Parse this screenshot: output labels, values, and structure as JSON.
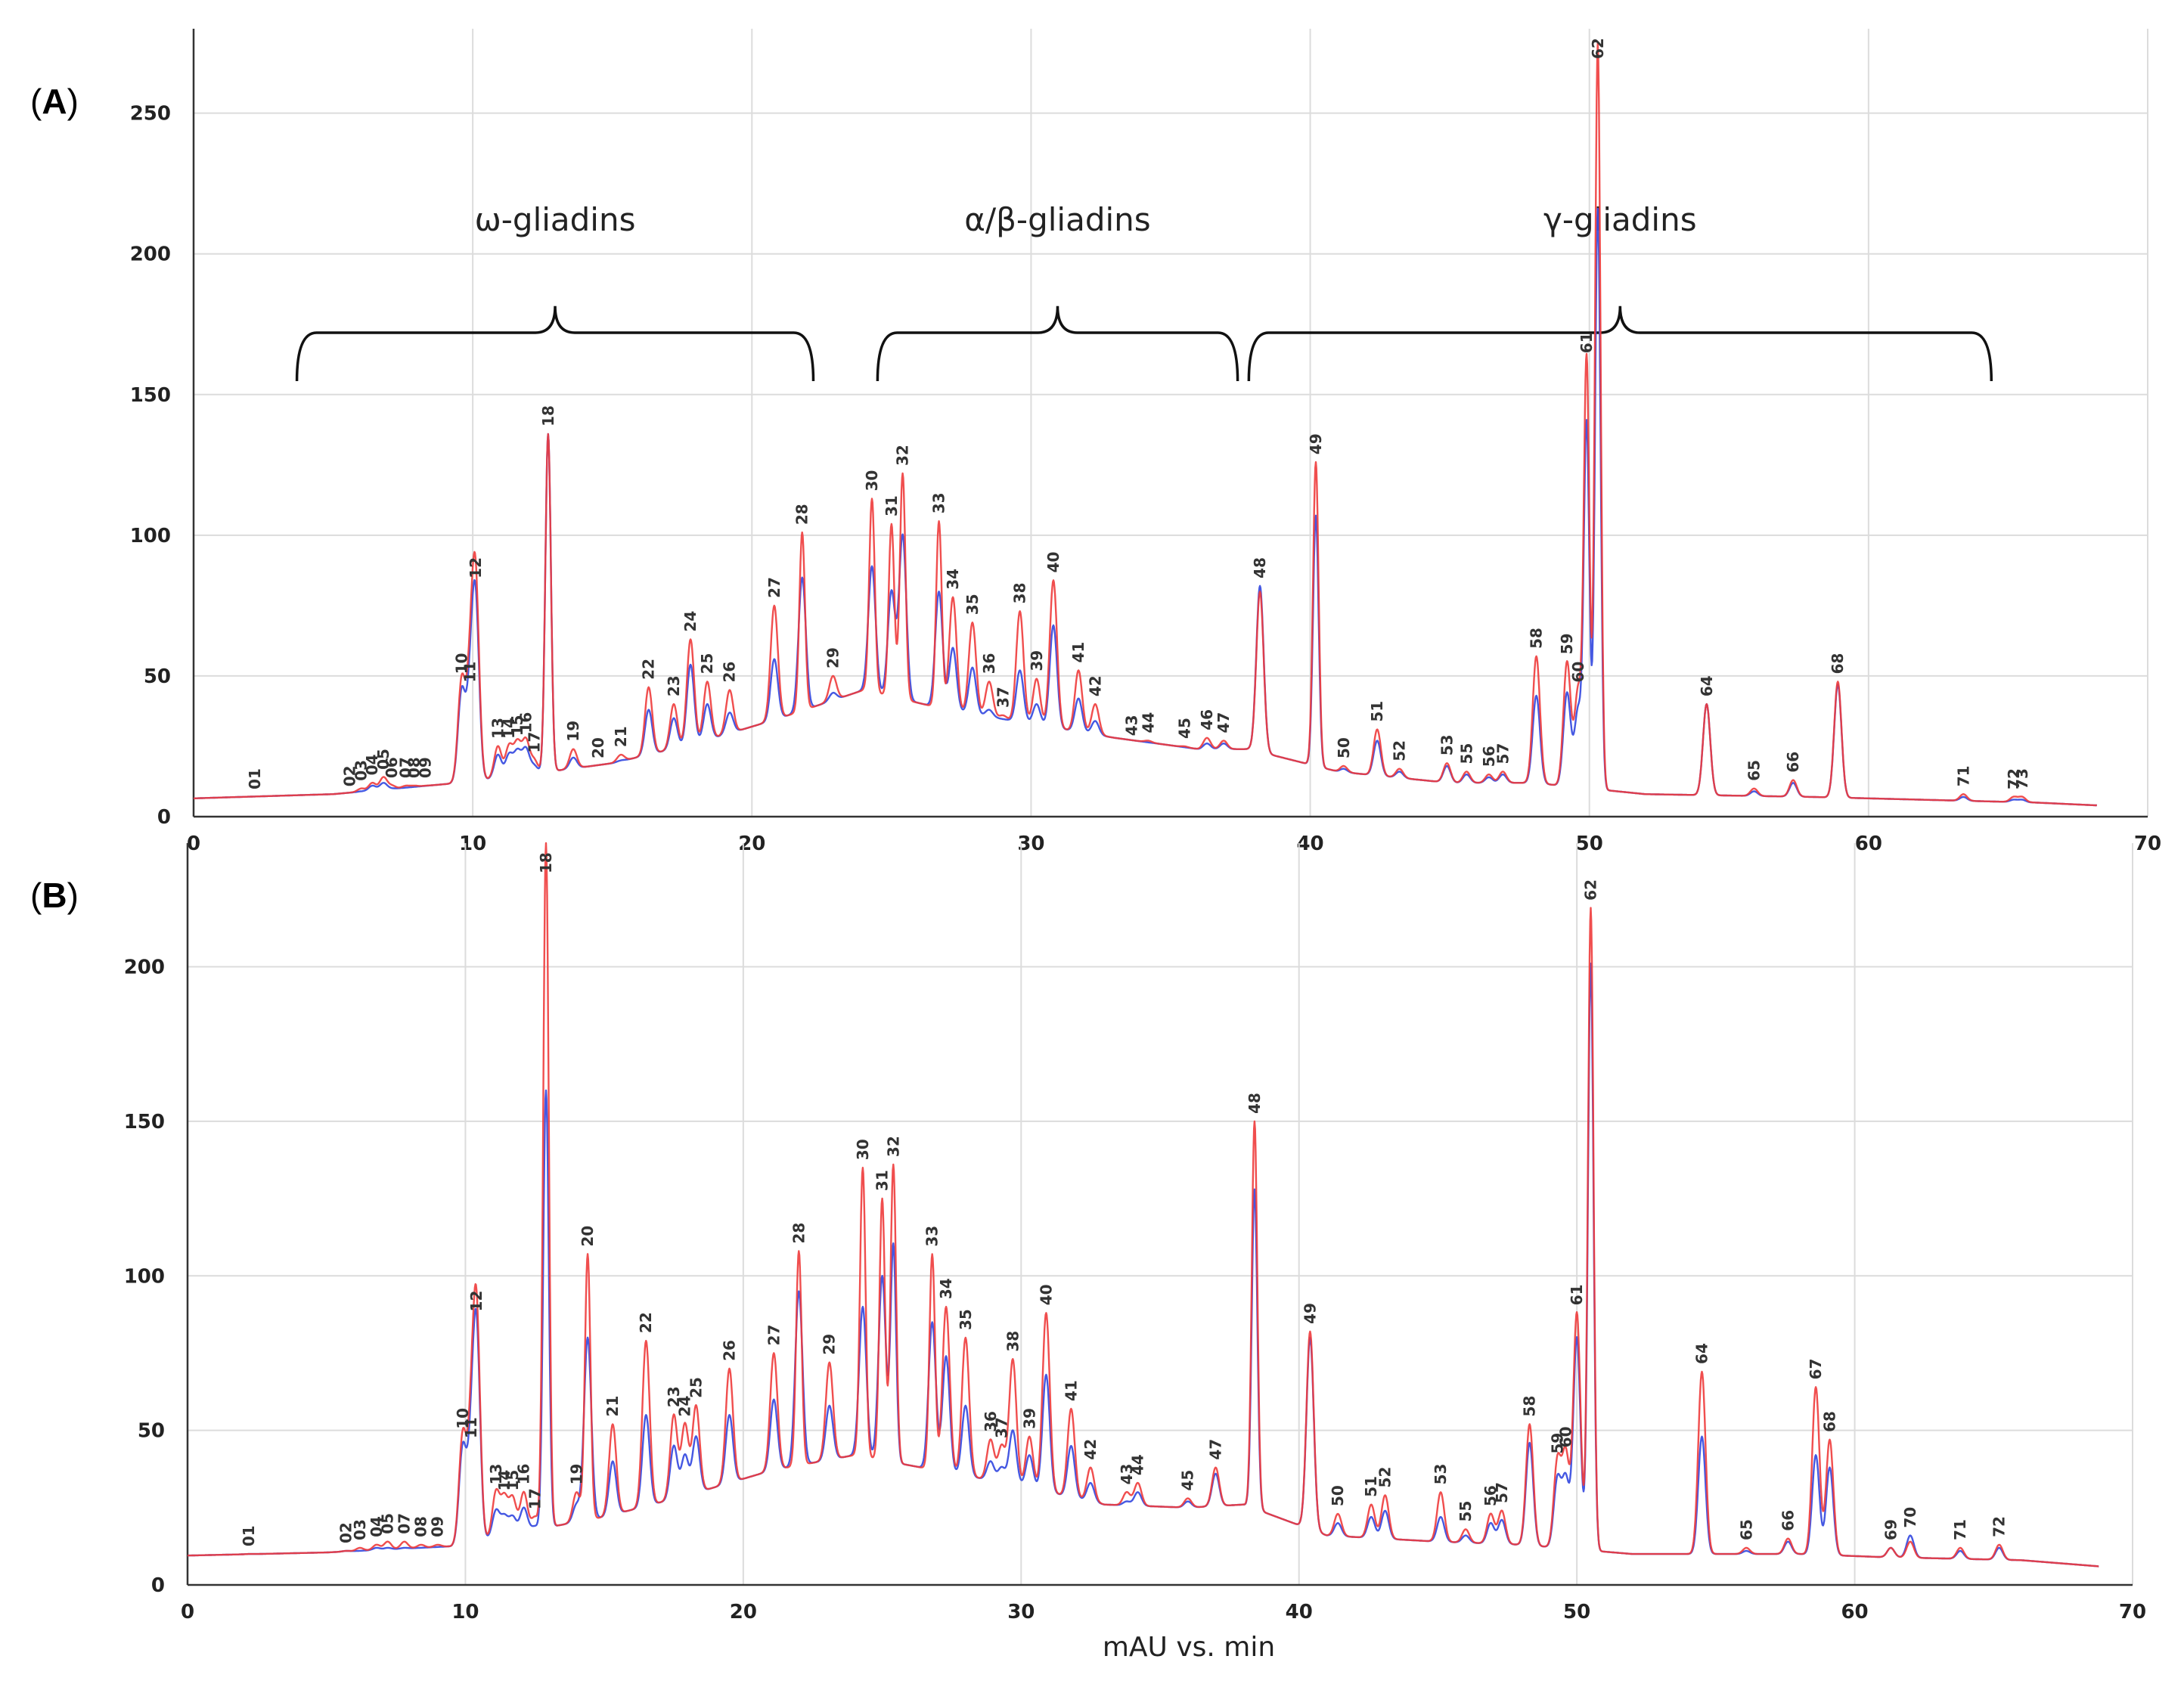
{
  "chart_data": [
    {
      "type": "line",
      "panel_label": "(A)",
      "xlim": [
        0,
        70
      ],
      "ylim": [
        0,
        280
      ],
      "x_ticks": [
        0,
        10,
        20,
        30,
        40,
        50,
        60,
        70
      ],
      "y_ticks": [
        0,
        50,
        100,
        150,
        200,
        250
      ],
      "xlabel": "",
      "series_colors": {
        "red": "#ee3b3b",
        "blue": "#3b4fe0"
      },
      "regions": [
        {
          "label": "ω-gliadins",
          "start": 3.7,
          "end": 22.2
        },
        {
          "label": "α/β-gliadins",
          "start": 24.5,
          "end": 37.4
        },
        {
          "label": "γ-gliadins",
          "start": 37.8,
          "end": 64.4
        }
      ],
      "baseline": [
        [
          0,
          6.5
        ],
        [
          5,
          8
        ],
        [
          9.5,
          12
        ],
        [
          12,
          15
        ],
        [
          15,
          19
        ],
        [
          18,
          26
        ],
        [
          21,
          35
        ],
        [
          24,
          45
        ],
        [
          27,
          38
        ],
        [
          30,
          33
        ],
        [
          33,
          28
        ],
        [
          36,
          24
        ],
        [
          37.8,
          24
        ],
        [
          41,
          16
        ],
        [
          45,
          12
        ],
        [
          48,
          12
        ],
        [
          52,
          8
        ],
        [
          58,
          7
        ],
        [
          62,
          6
        ],
        [
          66,
          5
        ],
        [
          68.2,
          4
        ]
      ],
      "peaks": [
        {
          "label": "01",
          "x": 2.2,
          "red": 7,
          "blue": 7
        },
        {
          "label": "02",
          "x": 5.6,
          "red": 8,
          "blue": 8
        },
        {
          "label": "03",
          "x": 6.0,
          "red": 10,
          "blue": 9
        },
        {
          "label": "04",
          "x": 6.4,
          "red": 12,
          "blue": 11
        },
        {
          "label": "05",
          "x": 6.8,
          "red": 14,
          "blue": 12
        },
        {
          "label": "06",
          "x": 7.1,
          "red": 11,
          "blue": 10
        },
        {
          "label": "07",
          "x": 7.6,
          "red": 11,
          "blue": 10
        },
        {
          "label": "08",
          "x": 7.9,
          "red": 11,
          "blue": 10
        },
        {
          "label": "09",
          "x": 8.3,
          "red": 11,
          "blue": 10
        },
        {
          "label": "10",
          "x": 9.6,
          "red": 48,
          "blue": 44
        },
        {
          "label": "11",
          "x": 9.9,
          "red": 45,
          "blue": 40
        },
        {
          "label": "12",
          "x": 10.1,
          "red": 82,
          "blue": 74
        },
        {
          "label": "13",
          "x": 10.9,
          "red": 25,
          "blue": 22
        },
        {
          "label": "14",
          "x": 11.3,
          "red": 25,
          "blue": 22
        },
        {
          "label": "15",
          "x": 11.6,
          "red": 26,
          "blue": 23
        },
        {
          "label": "16",
          "x": 11.9,
          "red": 27,
          "blue": 24
        },
        {
          "label": "17",
          "x": 12.2,
          "red": 20,
          "blue": 18
        },
        {
          "label": "18",
          "x": 12.7,
          "red": 136,
          "blue": 136
        },
        {
          "label": "19",
          "x": 13.6,
          "red": 24,
          "blue": 21
        },
        {
          "label": "20",
          "x": 14.5,
          "red": 18,
          "blue": 16
        },
        {
          "label": "21",
          "x": 15.3,
          "red": 22,
          "blue": 20
        },
        {
          "label": "22",
          "x": 16.3,
          "red": 46,
          "blue": 38
        },
        {
          "label": "23",
          "x": 17.2,
          "red": 40,
          "blue": 35
        },
        {
          "label": "24",
          "x": 17.8,
          "red": 63,
          "blue": 54
        },
        {
          "label": "25",
          "x": 18.4,
          "red": 48,
          "blue": 40
        },
        {
          "label": "26",
          "x": 19.2,
          "red": 45,
          "blue": 37
        },
        {
          "label": "27",
          "x": 20.8,
          "red": 75,
          "blue": 56
        },
        {
          "label": "28",
          "x": 21.8,
          "red": 101,
          "blue": 85
        },
        {
          "label": "29",
          "x": 22.9,
          "red": 50,
          "blue": 44
        },
        {
          "label": "30",
          "x": 24.3,
          "red": 113,
          "blue": 89
        },
        {
          "label": "31",
          "x": 25.0,
          "red": 104,
          "blue": 80
        },
        {
          "label": "32",
          "x": 25.4,
          "red": 122,
          "blue": 100
        },
        {
          "label": "33",
          "x": 26.7,
          "red": 105,
          "blue": 80
        },
        {
          "label": "34",
          "x": 27.2,
          "red": 78,
          "blue": 60
        },
        {
          "label": "35",
          "x": 27.9,
          "red": 69,
          "blue": 53
        },
        {
          "label": "36",
          "x": 28.5,
          "red": 48,
          "blue": 38
        },
        {
          "label": "37",
          "x": 29.0,
          "red": 36,
          "blue": 30
        },
        {
          "label": "38",
          "x": 29.6,
          "red": 73,
          "blue": 52
        },
        {
          "label": "39",
          "x": 30.2,
          "red": 49,
          "blue": 40
        },
        {
          "label": "40",
          "x": 30.8,
          "red": 84,
          "blue": 68
        },
        {
          "label": "41",
          "x": 31.7,
          "red": 52,
          "blue": 42
        },
        {
          "label": "42",
          "x": 32.3,
          "red": 40,
          "blue": 34
        },
        {
          "label": "43",
          "x": 33.6,
          "red": 26,
          "blue": 25
        },
        {
          "label": "44",
          "x": 34.2,
          "red": 27,
          "blue": 25
        },
        {
          "label": "45",
          "x": 35.5,
          "red": 25,
          "blue": 24
        },
        {
          "label": "46",
          "x": 36.3,
          "red": 28,
          "blue": 26
        },
        {
          "label": "47",
          "x": 36.9,
          "red": 27,
          "blue": 26
        },
        {
          "label": "48",
          "x": 38.2,
          "red": 80,
          "blue": 82
        },
        {
          "label": "49",
          "x": 40.2,
          "red": 126,
          "blue": 107
        },
        {
          "label": "50",
          "x": 41.2,
          "red": 18,
          "blue": 17
        },
        {
          "label": "51",
          "x": 42.4,
          "red": 31,
          "blue": 27
        },
        {
          "label": "52",
          "x": 43.2,
          "red": 17,
          "blue": 16
        },
        {
          "label": "53",
          "x": 44.9,
          "red": 19,
          "blue": 18
        },
        {
          "label": "55",
          "x": 45.6,
          "red": 16,
          "blue": 15
        },
        {
          "label": "56",
          "x": 46.4,
          "red": 15,
          "blue": 14
        },
        {
          "label": "57",
          "x": 46.9,
          "red": 16,
          "blue": 15
        },
        {
          "label": "58",
          "x": 48.1,
          "red": 57,
          "blue": 43
        },
        {
          "label": "59",
          "x": 49.2,
          "red": 55,
          "blue": 44
        },
        {
          "label": "60",
          "x": 49.6,
          "red": 45,
          "blue": 38
        },
        {
          "label": "61",
          "x": 49.9,
          "red": 162,
          "blue": 139
        },
        {
          "label": "62",
          "x": 50.3,
          "red": 275,
          "blue": 216
        },
        {
          "label": "64",
          "x": 54.2,
          "red": 40,
          "blue": 40
        },
        {
          "label": "65",
          "x": 55.9,
          "red": 10,
          "blue": 9
        },
        {
          "label": "66",
          "x": 57.3,
          "red": 13,
          "blue": 12
        },
        {
          "label": "68",
          "x": 58.9,
          "red": 48,
          "blue": 47
        },
        {
          "label": "71",
          "x": 63.4,
          "red": 8,
          "blue": 7
        },
        {
          "label": "72",
          "x": 65.2,
          "red": 7,
          "blue": 6
        },
        {
          "label": "73",
          "x": 65.5,
          "red": 7,
          "blue": 6
        }
      ]
    },
    {
      "type": "line",
      "panel_label": "(B)",
      "xlim": [
        0,
        70
      ],
      "ylim": [
        0,
        240
      ],
      "x_ticks": [
        0,
        10,
        20,
        30,
        40,
        50,
        60,
        70
      ],
      "y_ticks": [
        0,
        50,
        100,
        150,
        200
      ],
      "xlabel": "mAU vs. min",
      "series_colors": {
        "red": "#ee3b3b",
        "blue": "#3b4fe0"
      },
      "regions": [],
      "baseline": [
        [
          0,
          9.5
        ],
        [
          5,
          10.5
        ],
        [
          9.5,
          12.5
        ],
        [
          12,
          17
        ],
        [
          15,
          22
        ],
        [
          18,
          29
        ],
        [
          21,
          37
        ],
        [
          24,
          42
        ],
        [
          27,
          37
        ],
        [
          30,
          32
        ],
        [
          33,
          26
        ],
        [
          36,
          25
        ],
        [
          38,
          26
        ],
        [
          41,
          16
        ],
        [
          45,
          14
        ],
        [
          48,
          13
        ],
        [
          52,
          10
        ],
        [
          58,
          10
        ],
        [
          61,
          9
        ],
        [
          66,
          8
        ],
        [
          68.8,
          6
        ]
      ],
      "peaks": [
        {
          "label": "01",
          "x": 2.2,
          "red": 10,
          "blue": 10
        },
        {
          "label": "02",
          "x": 5.7,
          "red": 11,
          "blue": 11
        },
        {
          "label": "03",
          "x": 6.2,
          "red": 12,
          "blue": 11
        },
        {
          "label": "04",
          "x": 6.8,
          "red": 13,
          "blue": 12
        },
        {
          "label": "05",
          "x": 7.2,
          "red": 14,
          "blue": 12
        },
        {
          "label": "07",
          "x": 7.8,
          "red": 14,
          "blue": 12
        },
        {
          "label": "08",
          "x": 8.4,
          "red": 13,
          "blue": 12
        },
        {
          "label": "09",
          "x": 9.0,
          "red": 13,
          "blue": 12
        },
        {
          "label": "10",
          "x": 9.9,
          "red": 48,
          "blue": 44
        },
        {
          "label": "11",
          "x": 10.2,
          "red": 45,
          "blue": 40
        },
        {
          "label": "12",
          "x": 10.4,
          "red": 86,
          "blue": 80
        },
        {
          "label": "13",
          "x": 11.1,
          "red": 30,
          "blue": 24
        },
        {
          "label": "14",
          "x": 11.4,
          "red": 28,
          "blue": 22
        },
        {
          "label": "15",
          "x": 11.7,
          "red": 28,
          "blue": 22
        },
        {
          "label": "16",
          "x": 12.1,
          "red": 30,
          "blue": 25
        },
        {
          "label": "17",
          "x": 12.5,
          "red": 22,
          "blue": 19
        },
        {
          "label": "18",
          "x": 12.9,
          "red": 240,
          "blue": 160
        },
        {
          "label": "19",
          "x": 14.0,
          "red": 30,
          "blue": 26
        },
        {
          "label": "20",
          "x": 14.4,
          "red": 107,
          "blue": 80
        },
        {
          "label": "21",
          "x": 15.3,
          "red": 52,
          "blue": 40
        },
        {
          "label": "22",
          "x": 16.5,
          "red": 79,
          "blue": 55
        },
        {
          "label": "23",
          "x": 17.5,
          "red": 55,
          "blue": 45
        },
        {
          "label": "24",
          "x": 17.9,
          "red": 52,
          "blue": 42
        },
        {
          "label": "25",
          "x": 18.3,
          "red": 58,
          "blue": 48
        },
        {
          "label": "26",
          "x": 19.5,
          "red": 70,
          "blue": 55
        },
        {
          "label": "27",
          "x": 21.1,
          "red": 75,
          "blue": 60
        },
        {
          "label": "28",
          "x": 22.0,
          "red": 108,
          "blue": 95
        },
        {
          "label": "29",
          "x": 23.1,
          "red": 72,
          "blue": 58
        },
        {
          "label": "30",
          "x": 24.3,
          "red": 135,
          "blue": 90
        },
        {
          "label": "31",
          "x": 25.0,
          "red": 125,
          "blue": 100
        },
        {
          "label": "32",
          "x": 25.4,
          "red": 136,
          "blue": 110
        },
        {
          "label": "33",
          "x": 26.8,
          "red": 107,
          "blue": 85
        },
        {
          "label": "34",
          "x": 27.3,
          "red": 90,
          "blue": 74
        },
        {
          "label": "35",
          "x": 28.0,
          "red": 80,
          "blue": 58
        },
        {
          "label": "36",
          "x": 28.9,
          "red": 47,
          "blue": 40
        },
        {
          "label": "37",
          "x": 29.3,
          "red": 45,
          "blue": 38
        },
        {
          "label": "38",
          "x": 29.7,
          "red": 73,
          "blue": 50
        },
        {
          "label": "39",
          "x": 30.3,
          "red": 48,
          "blue": 42
        },
        {
          "label": "40",
          "x": 30.9,
          "red": 88,
          "blue": 68
        },
        {
          "label": "41",
          "x": 31.8,
          "red": 57,
          "blue": 45
        },
        {
          "label": "42",
          "x": 32.5,
          "red": 38,
          "blue": 33
        },
        {
          "label": "43",
          "x": 33.8,
          "red": 30,
          "blue": 27
        },
        {
          "label": "44",
          "x": 34.2,
          "red": 33,
          "blue": 30
        },
        {
          "label": "45",
          "x": 36.0,
          "red": 28,
          "blue": 27
        },
        {
          "label": "47",
          "x": 37.0,
          "red": 38,
          "blue": 36
        },
        {
          "label": "48",
          "x": 38.4,
          "red": 150,
          "blue": 128
        },
        {
          "label": "49",
          "x": 40.4,
          "red": 82,
          "blue": 80
        },
        {
          "label": "50",
          "x": 41.4,
          "red": 23,
          "blue": 20
        },
        {
          "label": "51",
          "x": 42.6,
          "red": 26,
          "blue": 22
        },
        {
          "label": "52",
          "x": 43.1,
          "red": 29,
          "blue": 24
        },
        {
          "label": "53",
          "x": 45.1,
          "red": 30,
          "blue": 22
        },
        {
          "label": "55",
          "x": 46.0,
          "red": 18,
          "blue": 16
        },
        {
          "label": "56",
          "x": 46.9,
          "red": 23,
          "blue": 20
        },
        {
          "label": "57",
          "x": 47.3,
          "red": 24,
          "blue": 21
        },
        {
          "label": "58",
          "x": 48.3,
          "red": 52,
          "blue": 46
        },
        {
          "label": "59",
          "x": 49.3,
          "red": 40,
          "blue": 34
        },
        {
          "label": "60",
          "x": 49.6,
          "red": 42,
          "blue": 34
        },
        {
          "label": "61",
          "x": 50.0,
          "red": 88,
          "blue": 80
        },
        {
          "label": "62",
          "x": 50.5,
          "red": 219,
          "blue": 201
        },
        {
          "label": "64",
          "x": 54.5,
          "red": 69,
          "blue": 48
        },
        {
          "label": "65",
          "x": 56.1,
          "red": 12,
          "blue": 11
        },
        {
          "label": "66",
          "x": 57.6,
          "red": 15,
          "blue": 14
        },
        {
          "label": "67",
          "x": 58.6,
          "red": 64,
          "blue": 42
        },
        {
          "label": "68",
          "x": 59.1,
          "red": 47,
          "blue": 38
        },
        {
          "label": "69",
          "x": 61.3,
          "red": 12,
          "blue": 12
        },
        {
          "label": "70",
          "x": 62.0,
          "red": 14,
          "blue": 16
        },
        {
          "label": "71",
          "x": 63.8,
          "red": 12,
          "blue": 11
        },
        {
          "label": "72",
          "x": 65.2,
          "red": 13,
          "blue": 12
        }
      ]
    }
  ]
}
